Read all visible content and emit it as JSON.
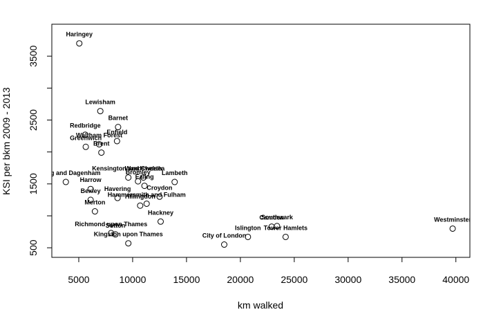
{
  "chart_data": {
    "type": "scatter",
    "title": "",
    "xlabel": "km walked",
    "ylabel": "KSI per bkm 2009 - 2013",
    "xlim": [
      2500,
      41300
    ],
    "ylim": [
      350,
      4000
    ],
    "x_ticks": [
      5000,
      10000,
      15000,
      20000,
      25000,
      30000,
      35000,
      40000
    ],
    "y_ticks": [
      500,
      1500,
      2500,
      3500
    ],
    "grid": false,
    "legend": "none",
    "marker": "open-circle",
    "points": [
      {
        "label": "Haringey",
        "x": 5050,
        "y": 3700
      },
      {
        "label": "Lewisham",
        "x": 7000,
        "y": 2640
      },
      {
        "label": "Barnet",
        "x": 8650,
        "y": 2390
      },
      {
        "label": "Redbridge",
        "x": 5600,
        "y": 2270
      },
      {
        "label": "Enfield",
        "x": 8550,
        "y": 2170
      },
      {
        "label": "Waltham Forest",
        "x": 6900,
        "y": 2120
      },
      {
        "label": "Greenwich",
        "x": 5650,
        "y": 2080
      },
      {
        "label": "Brent",
        "x": 7100,
        "y": 1990
      },
      {
        "label": "Kensington and Chelsea",
        "x": 9600,
        "y": 1600
      },
      {
        "label": "Wandsworth",
        "x": 11000,
        "y": 1600
      },
      {
        "label": "Barking and Dagenham",
        "x": 3800,
        "y": 1530
      },
      {
        "label": "Bromley",
        "x": 10500,
        "y": 1540
      },
      {
        "label": "Lambeth",
        "x": 13900,
        "y": 1530
      },
      {
        "label": "Ealing",
        "x": 11100,
        "y": 1470
      },
      {
        "label": "Harrow",
        "x": 6100,
        "y": 1420
      },
      {
        "label": "Croydon",
        "x": 12500,
        "y": 1300
      },
      {
        "label": "Havering",
        "x": 8600,
        "y": 1280
      },
      {
        "label": "Bexley",
        "x": 6100,
        "y": 1250
      },
      {
        "label": "Hammersmith and Fulham",
        "x": 11300,
        "y": 1190
      },
      {
        "label": "Hillingdon",
        "x": 10700,
        "y": 1160
      },
      {
        "label": "Merton",
        "x": 6500,
        "y": 1070
      },
      {
        "label": "Hackney",
        "x": 12600,
        "y": 910
      },
      {
        "label": "Southwark",
        "x": 23400,
        "y": 840
      },
      {
        "label": "Camden",
        "x": 22900,
        "y": 830
      },
      {
        "label": "Westminster",
        "x": 39700,
        "y": 800
      },
      {
        "label": "Richmond upon Thames",
        "x": 8000,
        "y": 730
      },
      {
        "label": "Sutton",
        "x": 8400,
        "y": 710
      },
      {
        "label": "Islington",
        "x": 20700,
        "y": 670
      },
      {
        "label": "Tower Hamlets",
        "x": 24200,
        "y": 670
      },
      {
        "label": "Kingston upon Thames",
        "x": 9600,
        "y": 570
      },
      {
        "label": "City of London",
        "x": 18500,
        "y": 550
      }
    ]
  }
}
